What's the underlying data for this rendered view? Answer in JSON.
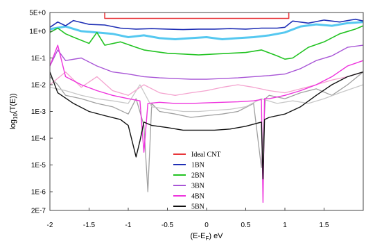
{
  "chart_data": {
    "type": "line",
    "title": "",
    "xlabel": "(E-E",
    "xlabel_sub": "F",
    "xlabel_tail": ") eV",
    "ylabel": "log",
    "ylabel_sub": "10",
    "ylabel_tail": "(T(E))",
    "xlim": [
      -2,
      2
    ],
    "ylim": [
      2e-07,
      5
    ],
    "yscale": "log",
    "x_ticks": [
      {
        "value": -2,
        "label": "-2"
      },
      {
        "value": -1.5,
        "label": "-1.5"
      },
      {
        "value": -1,
        "label": "-1"
      },
      {
        "value": -0.5,
        "label": "-0.5"
      },
      {
        "value": 0,
        "label": "0"
      },
      {
        "value": 0.5,
        "label": "0.5"
      },
      {
        "value": 1,
        "label": "1"
      },
      {
        "value": 1.5,
        "label": "1.5"
      }
    ],
    "y_ticks": [
      {
        "value": 5,
        "label": "5E+0"
      },
      {
        "value": 1,
        "label": "1E+0"
      },
      {
        "value": 0.1,
        "label": "1E-1"
      },
      {
        "value": 0.01,
        "label": "1E-2"
      },
      {
        "value": 0.001,
        "label": "1E-3"
      },
      {
        "value": 0.0001,
        "label": "1E-4"
      },
      {
        "value": 1e-05,
        "label": "1E-5"
      },
      {
        "value": 1e-06,
        "label": "1E-6"
      },
      {
        "value": 2e-07,
        "label": "2E-7"
      }
    ],
    "legend_position": "lower-center",
    "series": [
      {
        "name": "Ideal CNT",
        "color": "#e8363a",
        "width": 1.6,
        "x": [
          -1.3,
          -1.3,
          1.05,
          1.05
        ],
        "y": [
          5,
          3,
          3,
          5
        ]
      },
      {
        "name": "1BN",
        "color": "#1f2fb5",
        "width": 1.6,
        "x": [
          -2,
          -1.9,
          -1.8,
          -1.7,
          -1.5,
          -1.3,
          -1.1,
          -0.9,
          -0.7,
          -0.5,
          -0.3,
          -0.1,
          0.1,
          0.3,
          0.5,
          0.7,
          0.9,
          1.0,
          1.1,
          1.3,
          1.5,
          1.7,
          1.9,
          2.0
        ],
        "y": [
          1.4,
          2.2,
          1.6,
          2.5,
          1.8,
          1.7,
          1.3,
          1.2,
          1.25,
          1.2,
          1.15,
          1.2,
          1.2,
          1.25,
          1.2,
          1.3,
          1.3,
          1.4,
          2.4,
          2.0,
          2.6,
          2.2,
          2.8,
          2.4
        ]
      },
      {
        "name": "2BN",
        "color": "#22c322",
        "width": 1.6,
        "x": [
          -2,
          -1.9,
          -1.8,
          -1.7,
          -1.5,
          -1.4,
          -1.3,
          -1.1,
          -0.9,
          -0.8,
          -0.7,
          -0.5,
          -0.3,
          -0.1,
          0.1,
          0.3,
          0.5,
          0.7,
          0.9,
          1.0,
          1.1,
          1.3,
          1.5,
          1.7,
          1.9,
          2.0
        ],
        "y": [
          0.9,
          1.3,
          0.8,
          0.6,
          0.35,
          0.9,
          0.3,
          0.4,
          0.25,
          0.2,
          0.18,
          0.15,
          0.14,
          0.13,
          0.14,
          0.15,
          0.16,
          0.2,
          0.12,
          0.09,
          0.1,
          0.25,
          0.4,
          0.8,
          1.2,
          1.6
        ]
      },
      {
        "name": "3BN",
        "color": "#a855d6",
        "width": 1.4,
        "x": [
          -2,
          -1.9,
          -1.8,
          -1.6,
          -1.4,
          -1.2,
          -1.0,
          -0.8,
          -0.6,
          -0.4,
          -0.2,
          0,
          0.2,
          0.4,
          0.6,
          0.8,
          1.0,
          1.2,
          1.4,
          1.6,
          1.8,
          2.0
        ],
        "y": [
          0.05,
          0.2,
          0.08,
          0.1,
          0.05,
          0.03,
          0.025,
          0.02,
          0.018,
          0.017,
          0.016,
          0.016,
          0.017,
          0.018,
          0.02,
          0.022,
          0.025,
          0.04,
          0.08,
          0.12,
          0.25,
          0.3
        ]
      },
      {
        "name": "4BN",
        "color": "#ee33dd",
        "width": 1.4,
        "x": [
          -2,
          -1.9,
          -1.8,
          -1.6,
          -1.4,
          -1.2,
          -1.0,
          -0.85,
          -0.8,
          -0.75,
          -0.6,
          -0.4,
          -0.2,
          0,
          0.2,
          0.4,
          0.6,
          0.7,
          0.72,
          0.74,
          0.8,
          1.0,
          1.2,
          1.4,
          1.6,
          1.8,
          2.0
        ],
        "y": [
          0.05,
          0.3,
          0.02,
          0.01,
          0.006,
          0.004,
          0.003,
          0.0025,
          3e-05,
          0.002,
          0.0022,
          0.002,
          0.002,
          0.0021,
          0.0022,
          0.0023,
          0.0025,
          0.0028,
          4e-07,
          0.003,
          0.003,
          0.004,
          0.006,
          0.01,
          0.02,
          0.05,
          0.08
        ]
      },
      {
        "name": "5BN",
        "color": "#111111",
        "width": 1.4,
        "x": [
          -2,
          -1.9,
          -1.7,
          -1.5,
          -1.3,
          -1.1,
          -1.0,
          -0.9,
          -0.85,
          -0.8,
          -0.7,
          -0.5,
          -0.3,
          -0.1,
          0.1,
          0.3,
          0.5,
          0.7,
          0.72,
          0.74,
          0.8,
          1.0,
          1.2,
          1.4,
          1.6,
          1.8,
          2.0
        ],
        "y": [
          0.03,
          0.005,
          0.002,
          0.001,
          0.0007,
          0.0005,
          0.0003,
          2e-05,
          8e-05,
          0.0004,
          0.0003,
          0.00025,
          0.0002,
          0.0002,
          0.0002,
          0.00022,
          0.00028,
          0.0004,
          3e-06,
          0.0005,
          0.0006,
          0.0008,
          0.0015,
          0.004,
          0.01,
          0.02,
          0.03
        ]
      }
    ],
    "noise_series": [
      {
        "color": "#55c8f0",
        "width": 3,
        "x": [
          -2,
          -1.8,
          -1.6,
          -1.4,
          -1.2,
          -1.0,
          -0.8,
          -0.6,
          -0.4,
          -0.2,
          0,
          0.2,
          0.4,
          0.6,
          0.8,
          1.0,
          1.2,
          1.4,
          1.6,
          1.8,
          2.0
        ],
        "y": [
          1.2,
          1.5,
          1.0,
          0.9,
          0.8,
          0.6,
          0.7,
          0.55,
          0.5,
          0.55,
          0.6,
          0.5,
          0.55,
          0.6,
          0.7,
          0.9,
          1.5,
          1.8,
          1.6,
          2.0,
          2.2
        ]
      },
      {
        "color": "#a0a0a0",
        "width": 1.3,
        "x": [
          -2,
          -1.9,
          -1.8,
          -1.6,
          -1.4,
          -1.2,
          -1.0,
          -0.9,
          -0.8,
          -0.75,
          -0.7,
          -0.6,
          -0.4,
          -0.2,
          0,
          0.2,
          0.4,
          0.6,
          0.7,
          0.75,
          0.8,
          1.0,
          1.2,
          1.4,
          1.6,
          1.8,
          2.0
        ],
        "y": [
          0.02,
          0.01,
          0.004,
          0.003,
          0.002,
          0.0015,
          0.0008,
          0.003,
          0.0003,
          1e-06,
          0.002,
          0.001,
          0.0008,
          0.0006,
          0.0007,
          0.0008,
          0.001,
          0.002,
          8e-06,
          0.003,
          0.004,
          0.003,
          0.005,
          0.007,
          0.004,
          0.01,
          0.03
        ]
      },
      {
        "color": "#c8c8c8",
        "width": 1.3,
        "x": [
          -2,
          -1.8,
          -1.6,
          -1.4,
          -1.2,
          -1.0,
          -0.85,
          -0.7,
          -0.5,
          -0.3,
          -0.1,
          0.1,
          0.3,
          0.5,
          0.7,
          0.9,
          1.1,
          1.3,
          1.5,
          1.7,
          2.0
        ],
        "y": [
          0.008,
          0.006,
          0.004,
          0.003,
          0.0025,
          0.002,
          0.01,
          0.0015,
          0.0012,
          0.001,
          0.001,
          0.0011,
          0.0012,
          0.0015,
          0.003,
          0.002,
          0.0025,
          0.002,
          0.003,
          0.005,
          0.01
        ]
      },
      {
        "color": "#f4a3cf",
        "width": 1.3,
        "x": [
          -2,
          -1.8,
          -1.6,
          -1.4,
          -1.2,
          -1.0,
          -0.8,
          -0.6,
          -0.4,
          -0.2,
          0,
          0.2,
          0.4,
          0.6,
          0.8,
          1.0,
          1.2,
          1.4,
          1.6,
          1.8,
          2.0
        ],
        "y": [
          0.01,
          0.03,
          0.008,
          0.02,
          0.006,
          0.004,
          0.01,
          0.005,
          0.004,
          0.005,
          0.006,
          0.008,
          0.01,
          0.008,
          0.006,
          0.005,
          0.007,
          0.01,
          0.015,
          0.02,
          0.03
        ]
      }
    ],
    "grid": false
  }
}
